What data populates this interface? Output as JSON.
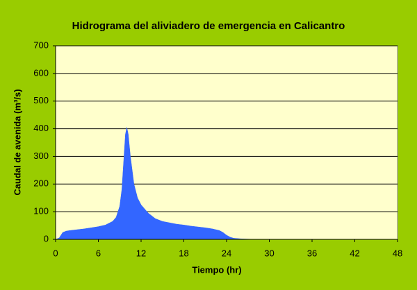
{
  "chart_data": {
    "type": "area",
    "title": "Hidrograma del aliviadero de emergencia en Calicantro",
    "x_label": "Tiempo (hr)",
    "y_label": "Caudal de avenida (m³/s)",
    "x": [
      0,
      0.5,
      1,
      1.5,
      2,
      3,
      4,
      5,
      6,
      7,
      8,
      8.5,
      9,
      9.3,
      9.6,
      9.8,
      10,
      10.2,
      10.5,
      11,
      11.5,
      12,
      13,
      14,
      15,
      16,
      17,
      18,
      19,
      20,
      21,
      22,
      23,
      23.5,
      24,
      24.5,
      25,
      26,
      27,
      28,
      48
    ],
    "values": [
      0,
      5,
      25,
      30,
      32,
      35,
      38,
      42,
      46,
      52,
      65,
      80,
      120,
      180,
      300,
      380,
      405,
      380,
      300,
      200,
      150,
      125,
      95,
      75,
      65,
      60,
      55,
      52,
      48,
      45,
      42,
      38,
      32,
      25,
      15,
      8,
      4,
      2,
      1,
      0,
      0
    ],
    "color": "#3366ff",
    "xlim": [
      0,
      48
    ],
    "xticks": [
      0,
      6,
      12,
      18,
      24,
      30,
      36,
      42,
      48
    ],
    "ylim": [
      0,
      700
    ],
    "yticks": [
      0,
      100,
      200,
      300,
      400,
      500,
      600,
      700
    ],
    "grid": true
  }
}
